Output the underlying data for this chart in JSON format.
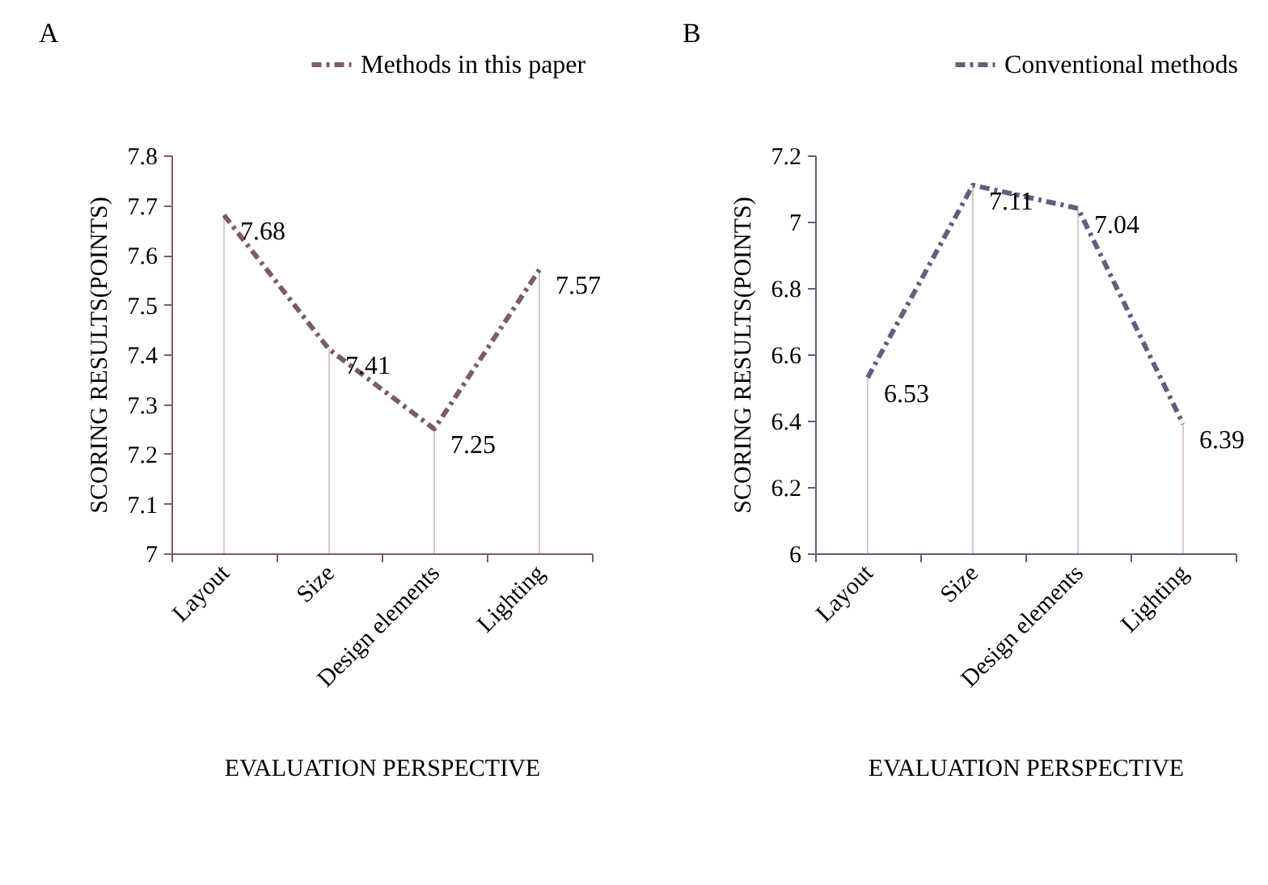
{
  "chart_data": [
    {
      "type": "line",
      "title": "A",
      "xlabel": "EVALUATION PERSPECTIVE",
      "ylabel": "SCORING RESULTS(POINTS)",
      "categories": [
        "Layout",
        "Size",
        "Design elements",
        "Lighting"
      ],
      "series": [
        {
          "name": "Methods in this paper",
          "color": "#7d5b68",
          "values": [
            7.68,
            7.41,
            7.25,
            7.57
          ]
        }
      ],
      "ylim": [
        7,
        7.8
      ],
      "yticks": [
        7,
        7.1,
        7.2,
        7.3,
        7.4,
        7.5,
        7.6,
        7.7,
        7.8
      ],
      "data_labels": true,
      "legend": "top right",
      "line_style": "dashed"
    },
    {
      "type": "line",
      "title": "B",
      "xlabel": "EVALUATION PERSPECTIVE",
      "ylabel": "SCORING RESULTS(POINTS)",
      "categories": [
        "Layout",
        "Size",
        "Design elements",
        "Lighting"
      ],
      "series": [
        {
          "name": "Conventional methods",
          "color": "#5d607e",
          "values": [
            6.53,
            7.11,
            7.04,
            6.39
          ]
        }
      ],
      "ylim": [
        6,
        7.2
      ],
      "yticks": [
        6,
        6.2,
        6.4,
        6.6,
        6.8,
        7,
        7.2
      ],
      "data_labels": true,
      "legend": "top right",
      "line_style": "dashed"
    }
  ]
}
